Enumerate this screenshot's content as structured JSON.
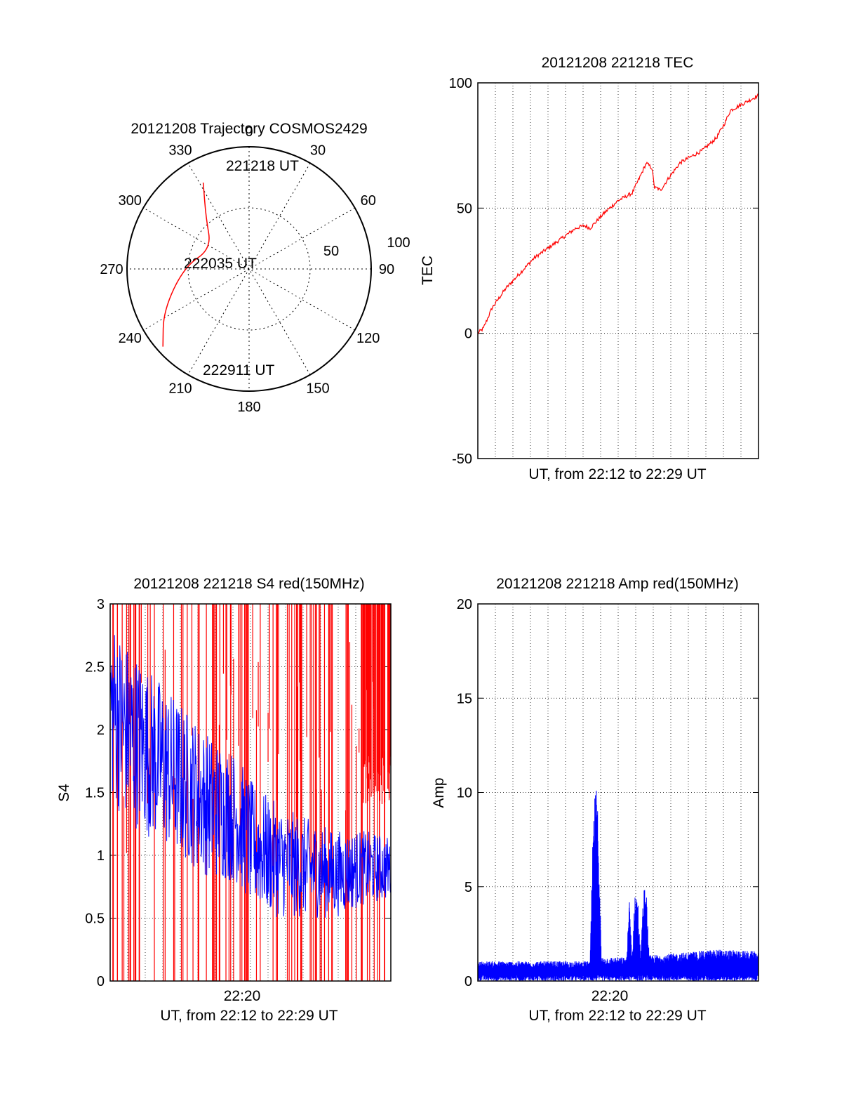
{
  "chart_data": [
    {
      "type": "polar-trajectory",
      "title": "20121208 Trajectory COSMOS2429",
      "azimuth_labels": [
        "0",
        "30",
        "60",
        "90",
        "120",
        "150",
        "180",
        "210",
        "240",
        "270",
        "300",
        "330"
      ],
      "radial_labels": [
        "50",
        "100"
      ],
      "trajectory": {
        "color": "#ff0000",
        "points": [
          {
            "az": 332,
            "r": 80
          },
          {
            "az": 320,
            "r": 55
          },
          {
            "az": 298,
            "r": 35
          },
          {
            "az": 272,
            "r": 53
          },
          {
            "az": 244,
            "r": 78
          },
          {
            "az": 228,
            "r": 95
          }
        ]
      },
      "annotations": [
        "221218 UT",
        "222035 UT",
        "222911 UT"
      ]
    },
    {
      "type": "line",
      "title": "20121208 221218 TEC",
      "xlabel": "UT, from 22:12 to 22:29 UT",
      "ylabel": "TEC",
      "ylim": [
        -50,
        100
      ],
      "yticks": [
        "-50",
        "0",
        "50",
        "100"
      ],
      "grid": true,
      "series": [
        {
          "color": "#ff0000",
          "x_fraction": [
            0,
            0.02,
            0.05,
            0.1,
            0.15,
            0.2,
            0.25,
            0.3,
            0.35,
            0.38,
            0.4,
            0.45,
            0.5,
            0.55,
            0.58,
            0.6,
            0.62,
            0.63,
            0.64,
            0.65,
            0.68,
            0.72,
            0.75,
            0.8,
            0.85,
            0.88,
            0.9,
            0.95,
            1.0
          ],
          "values": [
            0,
            2,
            10,
            18,
            24,
            30,
            34,
            38,
            42,
            43,
            42,
            48,
            53,
            56,
            63,
            68,
            66,
            58,
            58,
            57,
            62,
            68,
            70,
            73,
            78,
            84,
            89,
            92,
            95
          ]
        }
      ]
    },
    {
      "type": "line",
      "title": "20121208 221218 S4 red(150MHz)",
      "xlabel": "UT, from 22:12 to 22:29 UT",
      "ylabel": "S4",
      "xtick_label": "22:20",
      "ylim": [
        0,
        3
      ],
      "yticks": [
        "0",
        "0.5",
        "1",
        "1.5",
        "2",
        "2.5",
        "3"
      ],
      "grid": true,
      "series": [
        {
          "color": "#ff0000",
          "description_values_mean": 1.5
        },
        {
          "color": "#0000ff",
          "x_fraction": [
            0,
            0.05,
            0.1,
            0.15,
            0.2,
            0.25,
            0.3,
            0.35,
            0.4,
            0.45,
            0.5,
            0.6,
            0.7,
            0.8,
            0.9,
            1.0
          ],
          "values": [
            2.2,
            2.0,
            1.9,
            1.8,
            1.7,
            1.6,
            1.5,
            1.4,
            1.35,
            1.3,
            1.1,
            0.95,
            0.9,
            0.85,
            0.9,
            0.9
          ]
        }
      ]
    },
    {
      "type": "line",
      "title": "20121208 221218 Amp red(150MHz)",
      "xlabel": "UT, from 22:12 to 22:29 UT",
      "ylabel": "Amp",
      "xtick_label": "22:20",
      "ylim": [
        0,
        20
      ],
      "yticks": [
        "0",
        "5",
        "10",
        "15",
        "20"
      ],
      "grid": true,
      "series": [
        {
          "color": "#0000ff",
          "x_fraction": [
            0,
            0.2,
            0.4,
            0.41,
            0.42,
            0.43,
            0.44,
            0.53,
            0.54,
            0.55,
            0.56,
            0.57,
            0.58,
            0.59,
            0.6,
            0.61,
            0.7,
            0.85,
            1.0
          ],
          "values": [
            1.0,
            1.0,
            1.0,
            7.5,
            10.2,
            8.0,
            1.2,
            1.2,
            4.2,
            1.2,
            4.6,
            4.3,
            1.2,
            4.6,
            4.8,
            1.3,
            1.4,
            1.6,
            1.5
          ]
        }
      ]
    }
  ]
}
